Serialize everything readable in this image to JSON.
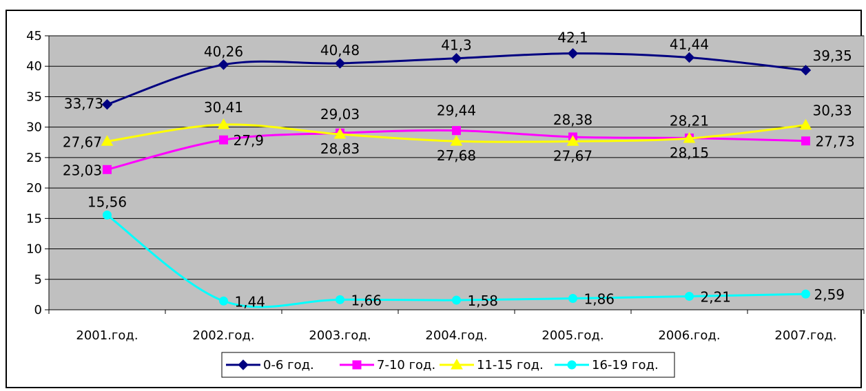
{
  "chart_data": {
    "type": "line",
    "title": "",
    "xlabel": "",
    "ylabel": "",
    "categories": [
      "2001.год.",
      "2002.год.",
      "2003.год.",
      "2004.год.",
      "2005.год.",
      "2006.год.",
      "2007.год."
    ],
    "ylim": [
      0,
      45
    ],
    "yticks": [
      0,
      5,
      10,
      15,
      20,
      25,
      30,
      35,
      40,
      45
    ],
    "grid": true,
    "smooth": true,
    "plot_background": "#c0c0c0",
    "legend_position": "bottom",
    "series": [
      {
        "name": "0-6 год.",
        "color": "#000080",
        "marker": "diamond",
        "values": [
          33.73,
          40.26,
          40.48,
          41.3,
          42.1,
          41.44,
          39.35
        ],
        "labels": [
          "33,73",
          "40,26",
          "40,48",
          "41,3",
          "42,1",
          "41,44",
          "39,35"
        ]
      },
      {
        "name": "7-10 год.",
        "color": "#ff00ff",
        "marker": "square",
        "values": [
          23.03,
          27.9,
          29.03,
          29.44,
          28.38,
          28.21,
          27.73
        ],
        "labels": [
          "23,03",
          "27,9",
          "29,03",
          "29,44",
          "28,38",
          "28,21",
          "27,73"
        ]
      },
      {
        "name": "11-15 год.",
        "color": "#ffff00",
        "marker": "triangle",
        "values": [
          27.67,
          30.41,
          28.83,
          27.68,
          27.67,
          28.15,
          30.33
        ],
        "labels": [
          "27,67",
          "30,41",
          "28,83",
          "27,68",
          "27,67",
          "28,15",
          "30,33"
        ]
      },
      {
        "name": "16-19 год.",
        "color": "#00ffff",
        "marker": "circle",
        "values": [
          15.56,
          1.44,
          1.66,
          1.58,
          1.86,
          2.21,
          2.59
        ],
        "labels": [
          "15,56",
          "1,44",
          "1,66",
          "1,58",
          "1,86",
          "2,21",
          "2,59"
        ]
      }
    ]
  }
}
